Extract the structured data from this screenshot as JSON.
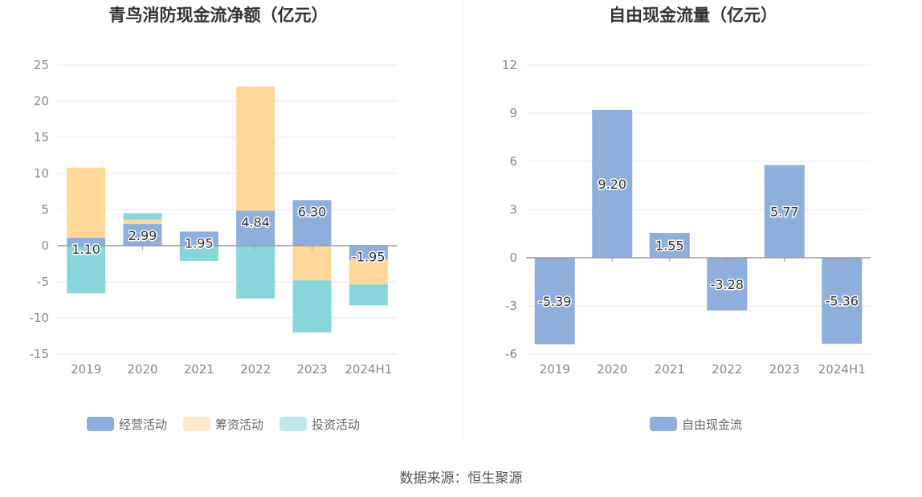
{
  "source_label": "数据来源：恒生聚源",
  "colors": {
    "operating": "#8eaedc",
    "financing": "#ffd899",
    "investing": "#88d6da",
    "free_cash_flow": "#8eaedc",
    "grid": "#e6e8f0",
    "axis": "#9a9a9a",
    "tick_text": "#8a8a8a",
    "title": "#333333",
    "legend_text": "#666666"
  },
  "chart_data": [
    {
      "id": "net-cash-flow",
      "type": "bar",
      "stacked": true,
      "title": "青鸟消防现金流净额（亿元）",
      "categories": [
        "2019",
        "2020",
        "2021",
        "2022",
        "2023",
        "2024H1"
      ],
      "ylim": [
        -15,
        25
      ],
      "yticks": [
        -15,
        -10,
        -5,
        0,
        5,
        10,
        15,
        20,
        25
      ],
      "grid": true,
      "legend_position": "bottom",
      "series": [
        {
          "key": "operating",
          "name": "经营活动",
          "values": [
            1.1,
            2.99,
            1.95,
            4.84,
            6.3,
            -1.95
          ],
          "labels": [
            "1.10",
            "2.99",
            "1.95",
            "4.84",
            "6.30",
            "-1.95"
          ]
        },
        {
          "key": "financing",
          "name": "筹资活动",
          "values": [
            9.7,
            0.6,
            -0.1,
            17.2,
            -4.8,
            -3.4
          ]
        },
        {
          "key": "investing",
          "name": "投资活动",
          "values": [
            -6.6,
            0.9,
            -2.0,
            -7.3,
            -7.2,
            -2.9
          ]
        }
      ]
    },
    {
      "id": "free-cash-flow",
      "type": "bar",
      "stacked": false,
      "title": "自由现金流量（亿元）",
      "categories": [
        "2019",
        "2020",
        "2021",
        "2022",
        "2023",
        "2024H1"
      ],
      "ylim": [
        -6,
        12
      ],
      "yticks": [
        -6,
        -3,
        0,
        3,
        6,
        9,
        12
      ],
      "grid": true,
      "legend_position": "bottom",
      "series": [
        {
          "key": "free_cash_flow",
          "name": "自由现金流",
          "values": [
            -5.39,
            9.2,
            1.55,
            -3.28,
            5.77,
            -5.36
          ],
          "labels": [
            "-5.39",
            "9.20",
            "1.55",
            "-3.28",
            "5.77",
            "-5.36"
          ]
        }
      ]
    }
  ]
}
